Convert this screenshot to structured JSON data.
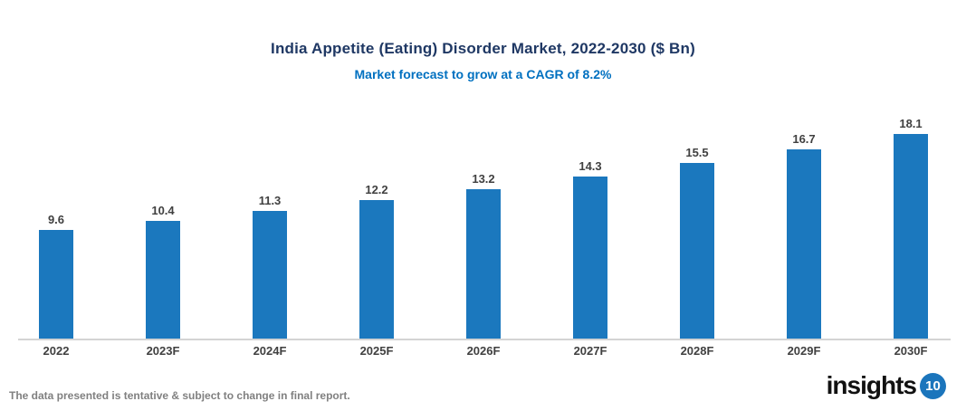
{
  "header": {
    "title": "India Appetite (Eating) Disorder Market, 2022-2030 ($ Bn)",
    "subtitle": "Market forecast to grow at a CAGR of 8.2%"
  },
  "chart_data": {
    "type": "bar",
    "categories": [
      "2022",
      "2023F",
      "2024F",
      "2025F",
      "2026F",
      "2027F",
      "2028F",
      "2029F",
      "2030F"
    ],
    "values": [
      9.6,
      10.4,
      11.3,
      12.2,
      13.2,
      14.3,
      15.5,
      16.7,
      18.1
    ],
    "title": "India Appetite (Eating) Disorder Market, 2022-2030 ($ Bn)",
    "subtitle": "Market forecast to grow at a CAGR of 8.2%",
    "xlabel": "",
    "ylabel": "",
    "ylim": [
      0,
      20
    ],
    "grid": false,
    "legend": false,
    "data_labels": true,
    "bar_color": "#1B78BE",
    "axis_line_color": "#D4D4D4"
  },
  "colors": {
    "title": "#1F3864",
    "subtitle": "#0070C0",
    "bar": "#1B78BE",
    "value_label": "#404040",
    "category_label": "#404040",
    "axis_line": "#D4D4D4",
    "footer_text": "#808080",
    "logo_text": "#111111",
    "logo_badge_bg": "#1B75BC",
    "logo_badge_text": "#FFFFFF",
    "background": "#FFFFFF"
  },
  "footer": {
    "disclaimer": "The data presented is tentative & subject to change in final report.",
    "logo": {
      "text": "insights",
      "badge": "10"
    }
  }
}
